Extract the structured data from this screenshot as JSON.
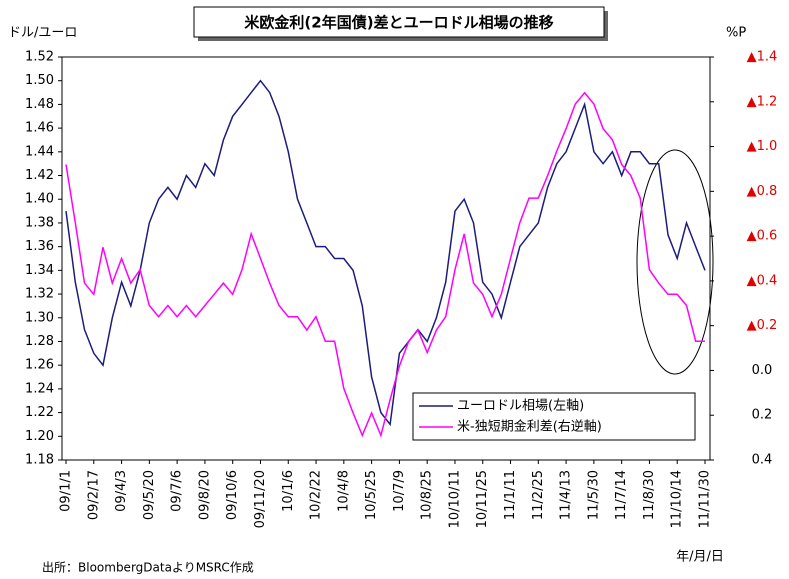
{
  "chart_data": {
    "type": "line",
    "title": "米欧金利(2年国債)差とユーロドル相場の推移",
    "y_label": "ドル/ユーロ",
    "y2_label": "%P",
    "x_label": "年/月/日",
    "source": "出所：BloombergDataよりMSRC作成",
    "categories": [
      "09/1/1",
      null,
      null,
      "09/2/17",
      null,
      null,
      "09/4/3",
      null,
      null,
      "09/5/20",
      null,
      null,
      "09/7/6",
      null,
      null,
      "09/8/20",
      null,
      null,
      "09/10/6",
      null,
      null,
      "09/11/20",
      null,
      null,
      "10/1/6",
      null,
      null,
      "10/2/22",
      null,
      null,
      "10/4/8",
      null,
      null,
      "10/5/25",
      null,
      null,
      "10/7/9",
      null,
      null,
      "10/8/25",
      null,
      null,
      "10/10/11",
      null,
      null,
      "10/11/25",
      null,
      null,
      "11/1/11",
      null,
      null,
      "11/2/25",
      null,
      null,
      "11/4/13",
      null,
      null,
      "11/5/30",
      null,
      null,
      "11/7/14",
      null,
      null,
      "11/8/30",
      null,
      null,
      "11/10/14",
      null,
      null,
      "11/11/30"
    ],
    "series": [
      {
        "name": "ユーロドル相場(左軸)",
        "color": "#1c1c7c",
        "axis": "y",
        "values": [
          1.39,
          1.33,
          1.29,
          1.27,
          1.26,
          1.3,
          1.33,
          1.31,
          1.34,
          1.38,
          1.4,
          1.41,
          1.4,
          1.42,
          1.41,
          1.43,
          1.42,
          1.45,
          1.47,
          1.48,
          1.49,
          1.5,
          1.49,
          1.47,
          1.44,
          1.4,
          1.38,
          1.36,
          1.36,
          1.35,
          1.35,
          1.34,
          1.31,
          1.25,
          1.22,
          1.21,
          1.27,
          1.28,
          1.29,
          1.28,
          1.3,
          1.33,
          1.39,
          1.4,
          1.38,
          1.33,
          1.32,
          1.3,
          1.33,
          1.36,
          1.37,
          1.38,
          1.41,
          1.43,
          1.44,
          1.46,
          1.48,
          1.44,
          1.43,
          1.44,
          1.42,
          1.44,
          1.44,
          1.43,
          1.43,
          1.37,
          1.35,
          1.38,
          1.36,
          1.34
        ]
      },
      {
        "name": "米-独短期金利差(右逆軸)",
        "color": "#ff00ff",
        "axis": "y2",
        "values": [
          -0.92,
          -0.66,
          -0.39,
          -0.34,
          -0.55,
          -0.39,
          -0.5,
          -0.39,
          -0.45,
          -0.29,
          -0.24,
          -0.29,
          -0.24,
          -0.29,
          -0.24,
          -0.29,
          -0.34,
          -0.39,
          -0.34,
          -0.45,
          -0.61,
          -0.5,
          -0.39,
          -0.29,
          -0.24,
          -0.24,
          -0.18,
          -0.24,
          -0.13,
          -0.13,
          0.08,
          0.19,
          0.29,
          0.19,
          0.29,
          0.13,
          -0.02,
          -0.13,
          -0.18,
          -0.08,
          -0.18,
          -0.24,
          -0.45,
          -0.61,
          -0.39,
          -0.34,
          -0.24,
          -0.34,
          -0.5,
          -0.66,
          -0.77,
          -0.77,
          -0.87,
          -0.98,
          -1.08,
          -1.19,
          -1.24,
          -1.19,
          -1.08,
          -1.03,
          -0.92,
          -0.87,
          -0.77,
          -0.45,
          -0.39,
          -0.34,
          -0.34,
          -0.29,
          -0.13,
          -0.13
        ]
      }
    ],
    "ylim": [
      1.18,
      1.52
    ],
    "yticks": [
      1.18,
      {
        "value": 1.2,
        "label": "1.20"
      },
      1.22,
      1.24,
      1.26,
      1.28,
      {
        "value": 1.3,
        "label": "1.30"
      },
      1.32,
      1.34,
      1.36,
      1.38,
      {
        "value": 1.4,
        "label": "1.40"
      },
      1.42,
      1.44,
      1.46,
      1.48,
      {
        "value": 1.5,
        "label": "1.50"
      },
      1.52
    ],
    "y2lim": [
      0.4,
      -1.4
    ],
    "y2ticks": [
      {
        "value": -1.4,
        "label": "▲1.4"
      },
      {
        "value": -1.2,
        "label": "▲1.2"
      },
      {
        "value": -1,
        "label": "▲1.0"
      },
      {
        "value": -0.8,
        "label": "▲0.8"
      },
      {
        "value": -0.6,
        "label": "▲0.6"
      },
      {
        "value": -0.4,
        "label": "▲0.4"
      },
      {
        "value": -0.2,
        "label": "▲0.2"
      },
      {
        "value": 0,
        "label": "0.0"
      },
      0.2,
      0.4
    ],
    "legend": "lower right"
  }
}
